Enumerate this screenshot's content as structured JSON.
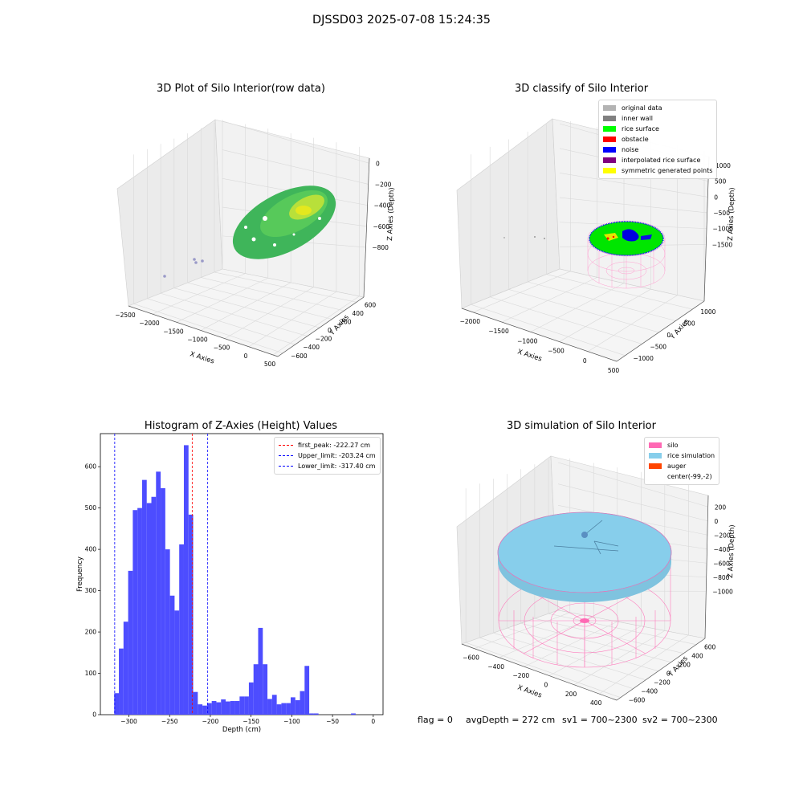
{
  "figure": {
    "suptitle": "DJSSD03 2025-07-08 15:24:35"
  },
  "panel1": {
    "title": "3D Plot of Silo Interior(row data)",
    "x_label": "X Axies",
    "y_label": "Y Axies",
    "z_label": "Z Axies (Depth)",
    "x_ticks": [
      "-2500",
      "-2000",
      "-1500",
      "-1000",
      "-500",
      "0",
      "500"
    ],
    "y_ticks": [
      "-600",
      "-400",
      "-200",
      "0",
      "200",
      "400",
      "600"
    ],
    "z_ticks": [
      "0",
      "-200",
      "-400",
      "-600",
      "-800"
    ]
  },
  "panel2": {
    "title": "3D classify of Silo Interior",
    "x_label": "X Axies",
    "y_label": "Y Axies",
    "z_label": "Z Axies (Depth)",
    "x_ticks": [
      "-2000",
      "-1500",
      "-1000",
      "-500",
      "0",
      "500"
    ],
    "y_ticks": [
      "-1000",
      "-500",
      "0",
      "500",
      "1000"
    ],
    "z_ticks": [
      "1000",
      "500",
      "0",
      "-500",
      "-1000",
      "-1500"
    ],
    "legend": [
      {
        "label": "original data",
        "color": "#b3b3b3"
      },
      {
        "label": "inner wall",
        "color": "#808080"
      },
      {
        "label": "rice surface",
        "color": "#00ff00"
      },
      {
        "label": "obstacle",
        "color": "#ff0000"
      },
      {
        "label": "noise",
        "color": "#0000ff"
      },
      {
        "label": "interpolated rice surface",
        "color": "#800080"
      },
      {
        "label": "symmetric generated points",
        "color": "#ffff00"
      }
    ]
  },
  "panel3": {
    "title": "Histogram of Z-Axies (Height) Values",
    "x_label": "Depth (cm)",
    "y_label": "Frequency",
    "legend": [
      {
        "label": "first_peak: -222.27 cm",
        "color": "#ff0000"
      },
      {
        "label": "Upper_limit: -203.24 cm",
        "color": "#0000ff"
      },
      {
        "label": "Lower_limit: -317.40 cm",
        "color": "#0000ff"
      }
    ]
  },
  "panel4": {
    "title": "3D simulation of Silo Interior",
    "x_label": "X Axies",
    "y_label": "Y Axies",
    "z_label": "Z Axies (Depth)",
    "x_ticks": [
      "-600",
      "-400",
      "-200",
      "0",
      "200",
      "400"
    ],
    "y_ticks": [
      "-600",
      "-400",
      "-200",
      "0",
      "200",
      "400",
      "600"
    ],
    "z_ticks": [
      "200",
      "0",
      "-200",
      "-400",
      "-600",
      "-800",
      "-1000"
    ],
    "legend": [
      {
        "label": "silo",
        "color": "#ff69b4"
      },
      {
        "label": "rice simulation",
        "color": "#87ceeb"
      },
      {
        "label": "auger",
        "color": "#ff4500"
      },
      {
        "label": "center(-99,-2)",
        "color": ""
      }
    ]
  },
  "footer": {
    "flag": "flag = 0",
    "avg": "avgDepth = 272 cm",
    "sv1": "sv1 = 700~2300",
    "sv2": "sv2 = 700~2300"
  },
  "chart_data": [
    {
      "type": "histogram",
      "title": "Histogram of Z-Axies (Height) Values",
      "xlabel": "Depth (cm)",
      "ylabel": "Frequency",
      "xlim": [
        -335,
        12
      ],
      "ylim": [
        0,
        680
      ],
      "xticks": [
        -300,
        -250,
        -200,
        -150,
        -100,
        -50,
        0
      ],
      "yticks": [
        0,
        100,
        200,
        300,
        400,
        500,
        600
      ],
      "bar_color": "#4d4dff",
      "bin_start": -318,
      "bin_width": 5.7,
      "values": [
        52,
        160,
        225,
        348,
        495,
        500,
        568,
        512,
        527,
        588,
        548,
        400,
        288,
        252,
        412,
        652,
        484,
        55,
        25,
        22,
        28,
        33,
        30,
        37,
        32,
        33,
        33,
        44,
        44,
        78,
        122,
        210,
        122,
        38,
        48,
        25,
        28,
        28,
        42,
        35,
        57,
        118,
        3,
        3,
        0,
        0,
        0,
        0,
        0,
        0,
        0,
        3
      ],
      "reference_lines": [
        {
          "name": "first_peak",
          "x": -222.27,
          "color": "#ff0000"
        },
        {
          "name": "Upper_limit",
          "x": -203.24,
          "color": "#0000ff"
        },
        {
          "name": "Lower_limit",
          "x": -317.4,
          "color": "#0000ff"
        }
      ],
      "legend_position": "top-right"
    }
  ]
}
